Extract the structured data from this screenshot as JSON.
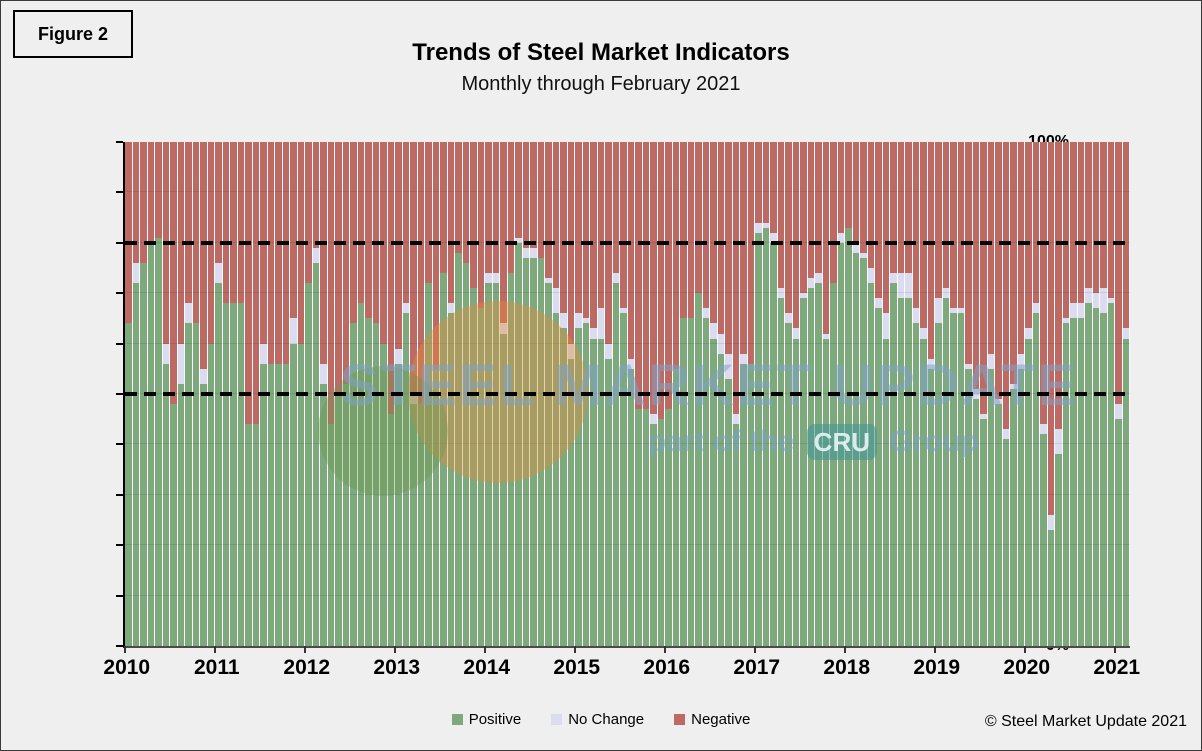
{
  "figure_label": "Figure 2",
  "title": "Trends of Steel Market Indicators",
  "subtitle": "Monthly through February 2021",
  "copyright": "© Steel Market Update 2021",
  "watermark": {
    "line1": "STEEL MARKET UPDATE",
    "line2_prefix": "part of the",
    "cru_badge": "CRU",
    "line2_suffix": "Group"
  },
  "colors": {
    "positive": "#7DA97D",
    "no_change": "#DCDCF0",
    "negative": "#BD6A64",
    "reference_line": "#000000"
  },
  "legend": [
    {
      "key": "positive",
      "label": "Positive"
    },
    {
      "key": "no_change",
      "label": "No Change"
    },
    {
      "key": "negative",
      "label": "Negative"
    }
  ],
  "y_axis": {
    "min": 0,
    "max": 100,
    "step": 10,
    "tick_suffix": "%"
  },
  "x_axis": {
    "years": [
      "2010",
      "2011",
      "2012",
      "2013",
      "2014",
      "2015",
      "2016",
      "2017",
      "2018",
      "2019",
      "2020",
      "2021"
    ]
  },
  "chart_data": {
    "type": "bar",
    "stacked": true,
    "start_month": "2010-01",
    "end_month": "2021-02",
    "ylim": [
      0,
      100
    ],
    "reference_lines": [
      50,
      80
    ],
    "grid": "horizontal-10pct",
    "legend_position": "bottom-center",
    "series": [
      {
        "name": "Positive",
        "key": "positive",
        "values": [
          64,
          72,
          76,
          80,
          81,
          56,
          48,
          52,
          64,
          64,
          52,
          60,
          72,
          68,
          68,
          68,
          44,
          44,
          56,
          56,
          56,
          56,
          60,
          60,
          72,
          76,
          52,
          44,
          50,
          52,
          64,
          68,
          65,
          64,
          60,
          46,
          56,
          66,
          48,
          48,
          72,
          55,
          74,
          66,
          78,
          76,
          71,
          67,
          72,
          72,
          62,
          74,
          80,
          77,
          77,
          77,
          72,
          66,
          63,
          57,
          63,
          64,
          61,
          61,
          57,
          72,
          66,
          55,
          47,
          47,
          44,
          45,
          47,
          55,
          65,
          65,
          70,
          65,
          61,
          58,
          53,
          44,
          56,
          56,
          82,
          83,
          80,
          69,
          64,
          61,
          69,
          71,
          72,
          61,
          72,
          80,
          83,
          78,
          77,
          72,
          67,
          61,
          72,
          69,
          69,
          64,
          61,
          55,
          64,
          69,
          66,
          66,
          55,
          49,
          45,
          55,
          48,
          41,
          51,
          55,
          61,
          66,
          42,
          23,
          38,
          64,
          65,
          65,
          68,
          67,
          66,
          68,
          45,
          61
        ]
      },
      {
        "name": "No Change",
        "key": "no_change",
        "values": [
          0,
          4,
          0,
          0,
          0,
          4,
          0,
          8,
          4,
          0,
          3,
          0,
          4,
          0,
          0,
          0,
          0,
          0,
          4,
          0,
          0,
          0,
          5,
          0,
          0,
          3,
          4,
          0,
          0,
          0,
          0,
          0,
          0,
          0,
          0,
          0,
          3,
          2,
          2,
          0,
          0,
          0,
          0,
          2,
          0,
          0,
          0,
          0,
          2,
          2,
          2,
          0,
          1,
          2,
          2,
          0,
          1,
          5,
          3,
          3,
          3,
          1,
          2,
          6,
          3,
          2,
          1,
          2,
          0,
          0,
          2,
          0,
          0,
          0,
          0,
          0,
          0,
          2,
          3,
          4,
          5,
          2,
          2,
          0,
          2,
          1,
          2,
          2,
          2,
          2,
          1,
          2,
          2,
          1,
          0,
          2,
          0,
          2,
          1,
          3,
          2,
          5,
          2,
          5,
          5,
          3,
          2,
          2,
          5,
          2,
          1,
          1,
          1,
          2,
          1,
          3,
          1,
          2,
          1,
          3,
          2,
          2,
          2,
          3,
          5,
          1,
          3,
          3,
          3,
          3,
          5,
          1,
          3,
          2
        ]
      },
      {
        "name": "Negative",
        "key": "negative",
        "values": [
          36,
          24,
          24,
          20,
          19,
          40,
          52,
          40,
          32,
          36,
          45,
          40,
          24,
          32,
          32,
          32,
          56,
          56,
          40,
          44,
          44,
          44,
          35,
          40,
          28,
          21,
          44,
          56,
          50,
          48,
          36,
          32,
          35,
          36,
          40,
          54,
          41,
          32,
          50,
          52,
          28,
          45,
          26,
          32,
          22,
          24,
          29,
          33,
          26,
          26,
          36,
          26,
          19,
          21,
          21,
          23,
          27,
          29,
          34,
          40,
          34,
          35,
          37,
          33,
          40,
          26,
          33,
          43,
          53,
          53,
          54,
          55,
          53,
          45,
          35,
          35,
          30,
          33,
          36,
          38,
          42,
          54,
          42,
          44,
          16,
          16,
          18,
          29,
          34,
          37,
          30,
          27,
          26,
          38,
          28,
          18,
          17,
          20,
          22,
          25,
          31,
          34,
          26,
          26,
          26,
          33,
          37,
          43,
          31,
          29,
          33,
          33,
          44,
          49,
          54,
          42,
          51,
          57,
          48,
          42,
          37,
          32,
          56,
          74,
          57,
          35,
          32,
          32,
          29,
          30,
          29,
          31,
          52,
          37
        ]
      }
    ]
  }
}
